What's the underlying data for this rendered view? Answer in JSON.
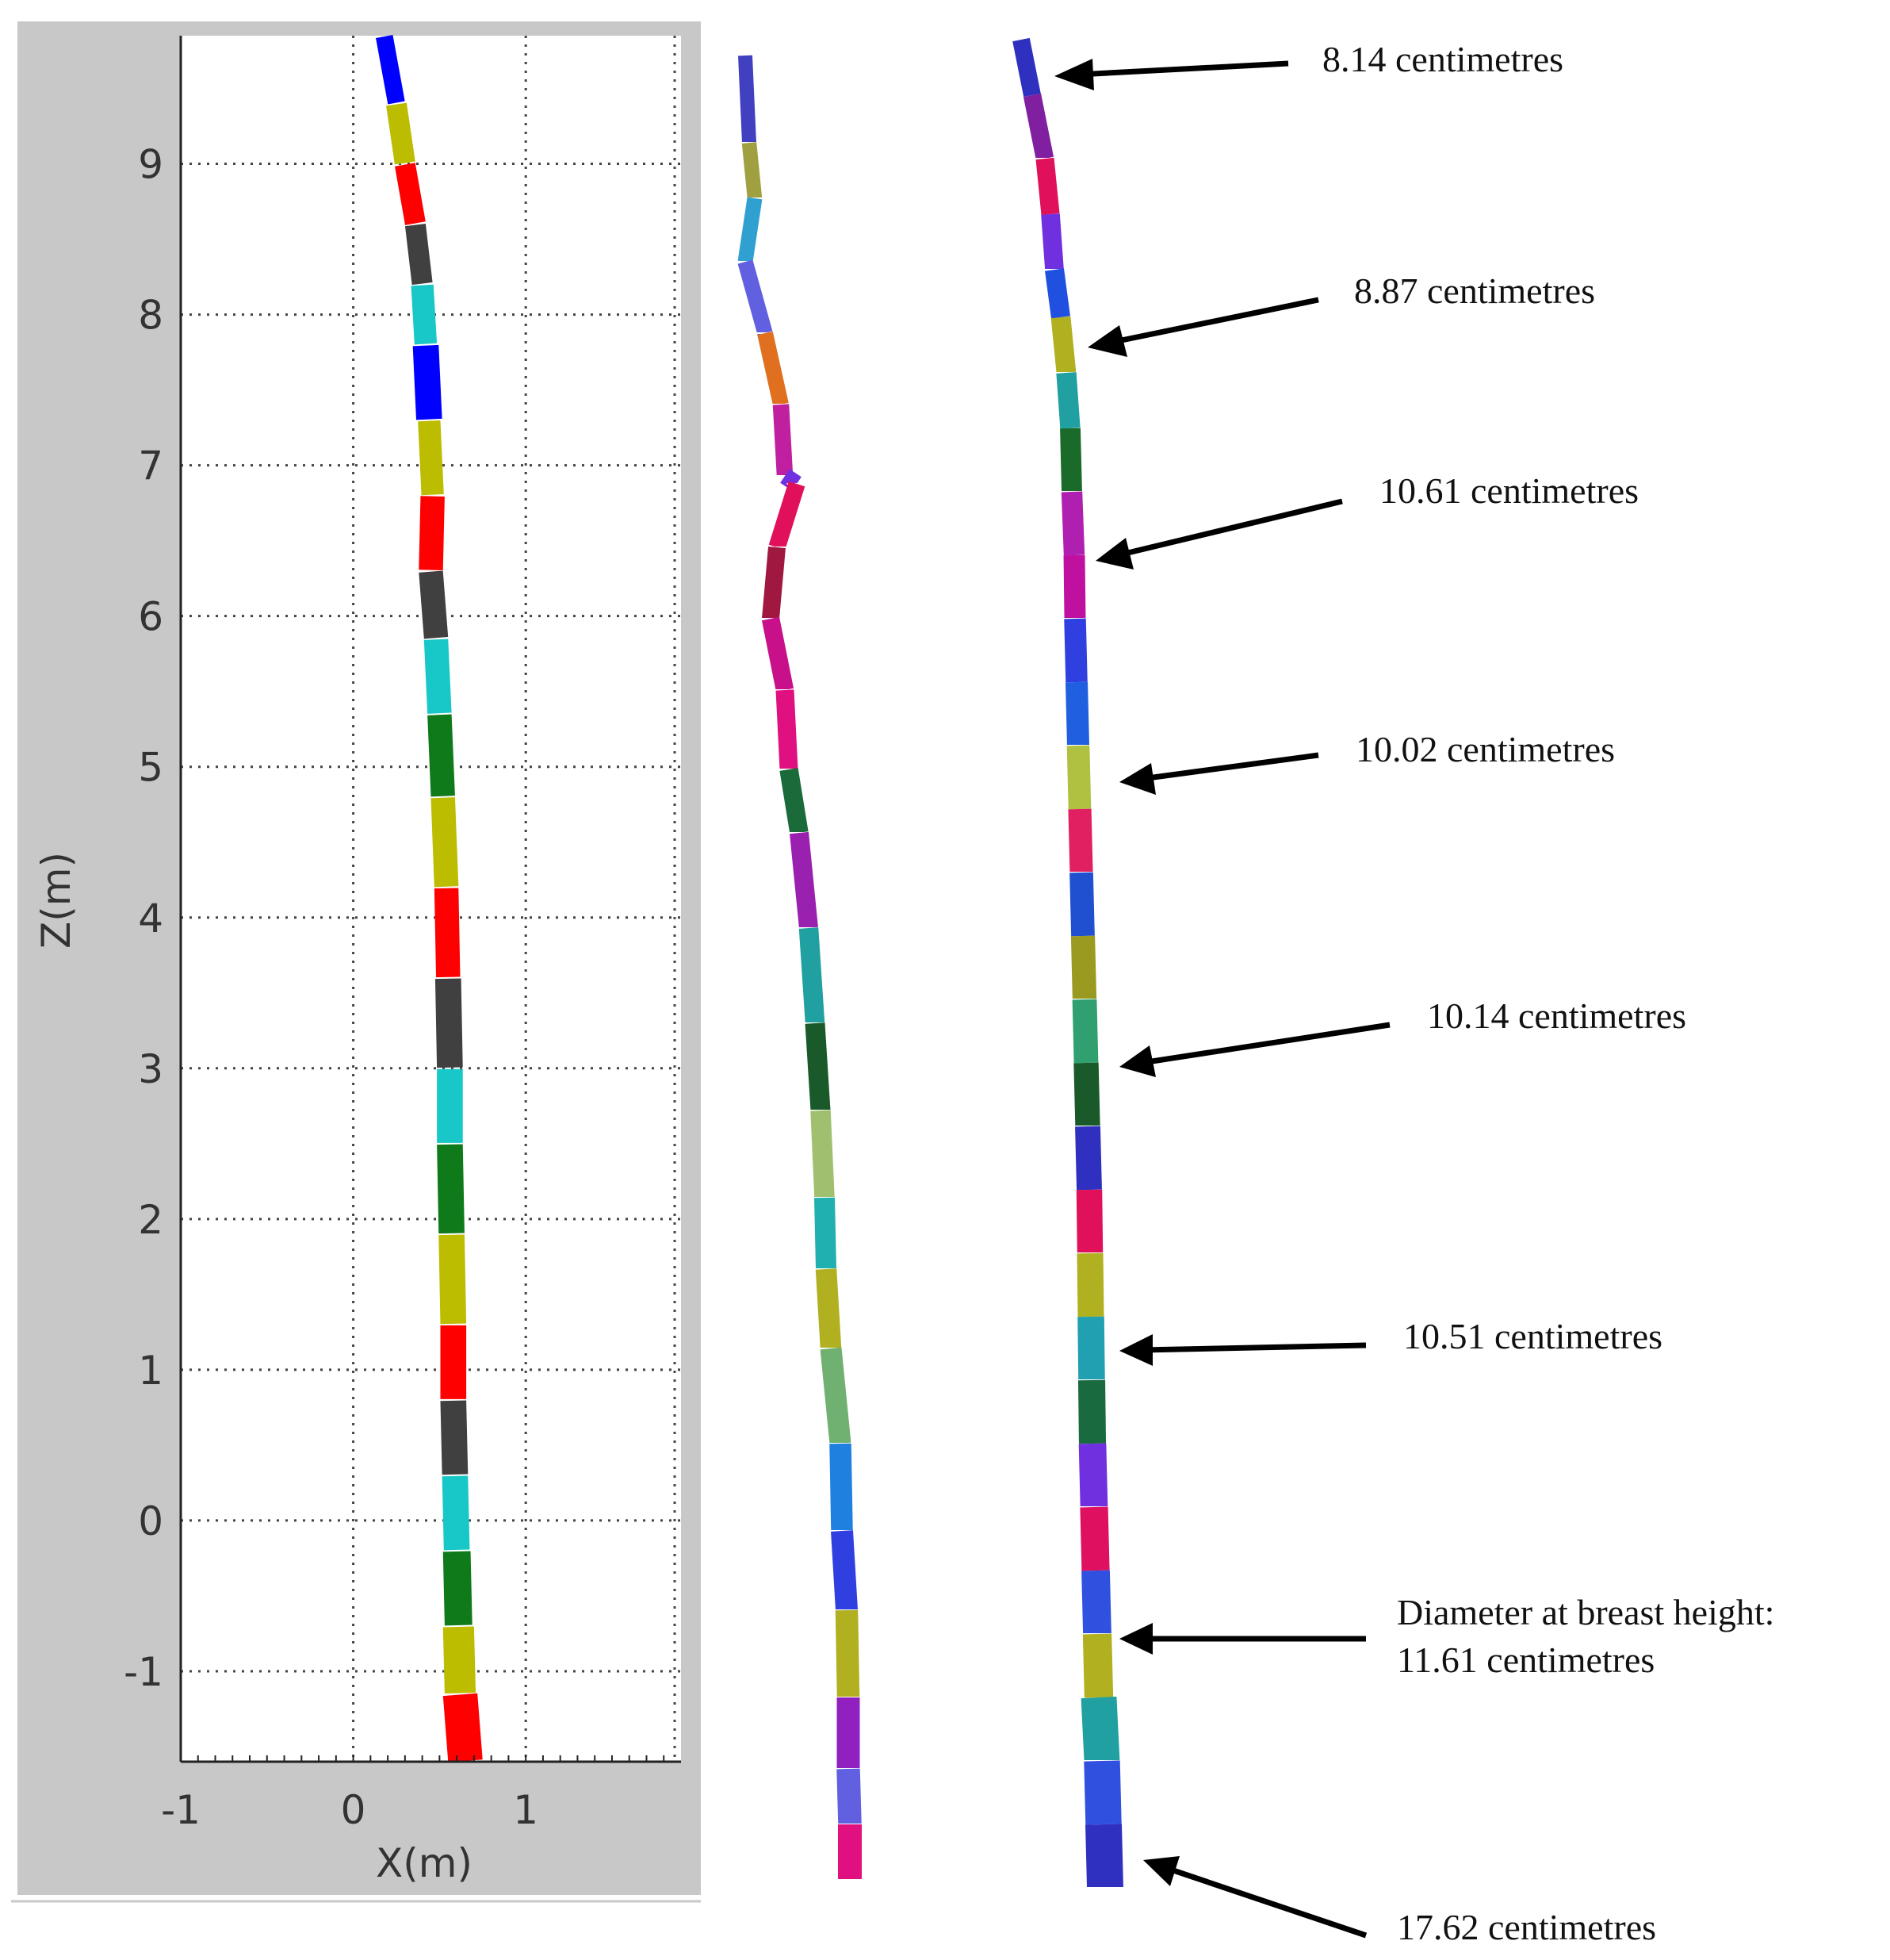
{
  "chart_data": [
    {
      "type": "line",
      "name": "plot-stem-segments",
      "xlabel": "X(m)",
      "ylabel": "Z(m)",
      "xlim": [
        -1,
        1.9
      ],
      "ylim": [
        -1.6,
        9.85
      ],
      "xticks": [
        -1,
        0,
        1
      ],
      "yticks": [
        -1,
        0,
        1,
        2,
        3,
        4,
        5,
        6,
        7,
        8,
        9
      ],
      "grid": true,
      "background": "#c8c8c8",
      "stem_points": [
        [
          0.18,
          9.85
        ],
        [
          0.25,
          9.4
        ],
        [
          0.3,
          9.0
        ],
        [
          0.36,
          8.6
        ],
        [
          0.4,
          8.2
        ],
        [
          0.42,
          7.8
        ],
        [
          0.44,
          7.3
        ],
        [
          0.46,
          6.8
        ],
        [
          0.45,
          6.3
        ],
        [
          0.48,
          5.85
        ],
        [
          0.5,
          5.35
        ],
        [
          0.52,
          4.8
        ],
        [
          0.54,
          4.2
        ],
        [
          0.55,
          3.6
        ],
        [
          0.56,
          3.0
        ],
        [
          0.56,
          2.5
        ],
        [
          0.57,
          1.9
        ],
        [
          0.58,
          1.3
        ],
        [
          0.58,
          0.8
        ],
        [
          0.59,
          0.3
        ],
        [
          0.6,
          -0.2
        ],
        [
          0.61,
          -0.7
        ],
        [
          0.62,
          -1.15
        ],
        [
          0.65,
          -1.6
        ]
      ],
      "segment_colors": [
        "#0000ff",
        "#bcbc00",
        "#ff0000",
        "#404040",
        "#18c8c8",
        "#0000ff",
        "#bcbc00",
        "#ff0000",
        "#404040",
        "#18c8c8",
        "#0f7a1a",
        "#bcbc00",
        "#ff0000",
        "#404040",
        "#18c8c8",
        "#0f7a1a",
        "#bcbc00",
        "#ff0000",
        "#404040",
        "#18c8c8",
        "#0f7a1a",
        "#bcbc00",
        "#ff0000"
      ],
      "segment_widths_m": [
        0.1,
        0.12,
        0.12,
        0.12,
        0.13,
        0.15,
        0.13,
        0.14,
        0.14,
        0.14,
        0.14,
        0.14,
        0.14,
        0.15,
        0.15,
        0.15,
        0.15,
        0.15,
        0.15,
        0.15,
        0.16,
        0.18,
        0.2
      ]
    }
  ],
  "stem_model_middle": {
    "colors": [
      "#4040c0",
      "#a0a040",
      "#30a0d0",
      "#6060e0",
      "#e07020",
      "#c020a0",
      "#7030e0",
      "#e0105a",
      "#a01840",
      "#c8108a",
      "#e01080",
      "#1a6a3a",
      "#9a20b0",
      "#20a0a0",
      "#1a5a2a",
      "#a0c070",
      "#20b0b0",
      "#b0b020",
      "#70b070",
      "#2080e0",
      "#3040e0",
      "#b0b020",
      "#9020c0",
      "#6060e0",
      "#e01080",
      "#3050e0"
    ]
  },
  "stem_model_right": {
    "colors": [
      "#3030c0",
      "#8020a0",
      "#e0105a",
      "#7030e0",
      "#2050e0",
      "#b0b020",
      "#20a0a0",
      "#1a6a2a",
      "#b020b0",
      "#c010a0",
      "#3040e0",
      "#2060e0",
      "#b0c040",
      "#e02060",
      "#2050d0",
      "#9a9a20",
      "#30a070",
      "#1a5a2a",
      "#3030c0",
      "#e0105a",
      "#b0b020",
      "#20a0b0",
      "#1a6a40",
      "#7030e0",
      "#e01060",
      "#3050e0",
      "#b0b020",
      "#20a0a0",
      "#3050e0"
    ]
  },
  "annotations": [
    {
      "label": "8.14 centimetres"
    },
    {
      "label": "8.87 centimetres"
    },
    {
      "label": "10.61 centimetres"
    },
    {
      "label": "10.02 centimetres"
    },
    {
      "label": "10.14 centimetres"
    },
    {
      "label": "10.51 centimetres"
    },
    {
      "label": "Diameter at breast height:",
      "label2": "11.61 centimetres"
    },
    {
      "label": "17.62 centimetres"
    }
  ]
}
